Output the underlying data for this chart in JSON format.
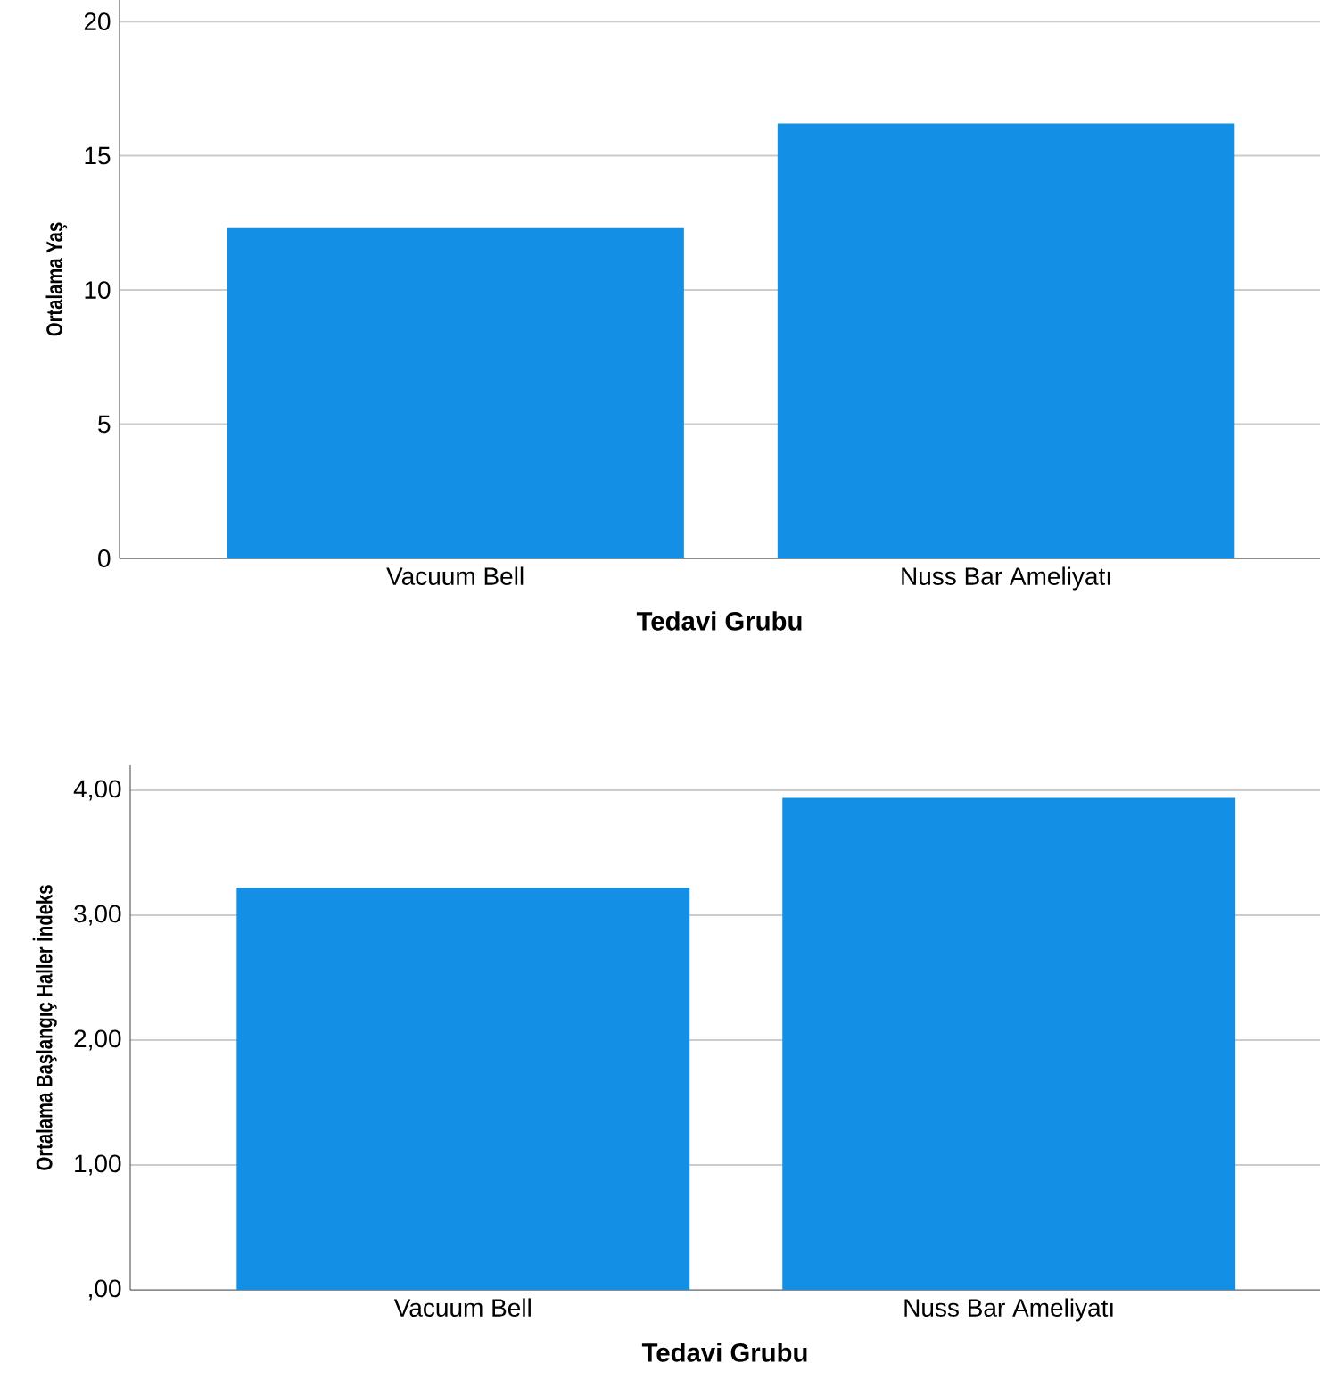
{
  "chart_data": [
    {
      "type": "bar",
      "categories": [
        "Vacuum Bell",
        "Nuss Bar Ameliyatı"
      ],
      "values": [
        12.3,
        16.2
      ],
      "color": "#1390e5",
      "xlabel": "Tedavi Grubu",
      "ylabel": "Ortalama Yaş",
      "ylim": [
        0,
        20.8
      ],
      "yticks": [
        0,
        5,
        10,
        15,
        20
      ],
      "grid": "y"
    },
    {
      "type": "bar",
      "categories": [
        "Vacuum Bell",
        "Nuss Bar Ameliyatı"
      ],
      "values": [
        3.22,
        3.94
      ],
      "color": "#1390e5",
      "xlabel": "Tedavi Grubu",
      "ylabel": "Ortalama Başlangıç Haller İndeks",
      "ylim": [
        0,
        4.2
      ],
      "yticks": [
        {
          "value": 0,
          "label": ",00"
        },
        {
          "value": 1,
          "label": "1,00"
        },
        {
          "value": 2,
          "label": "2,00"
        },
        {
          "value": 3,
          "label": "3,00"
        },
        {
          "value": 4,
          "label": "4,00"
        }
      ],
      "grid": "y"
    }
  ]
}
